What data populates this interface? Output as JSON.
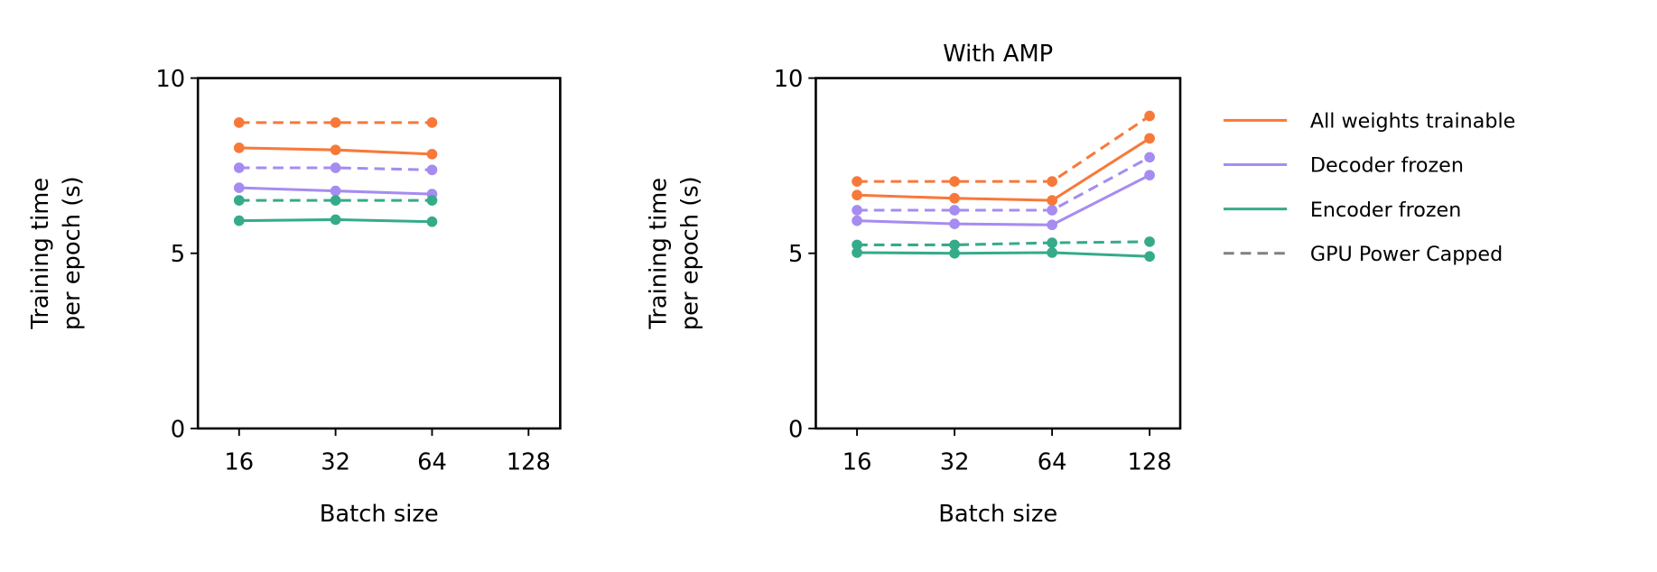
{
  "chart_data": [
    {
      "type": "line",
      "title": "",
      "xlabel": "Batch size",
      "ylabel": [
        "Training time",
        "per epoch (s)"
      ],
      "categories": [
        "16",
        "32",
        "64",
        "128"
      ],
      "yticks": [
        "0",
        "5",
        "10"
      ],
      "ylim": [
        0,
        10
      ],
      "series": [
        {
          "key": "all",
          "style": "dashed",
          "values": [
            8.73,
            8.73,
            8.73,
            null
          ]
        },
        {
          "key": "all",
          "style": "solid",
          "values": [
            8.01,
            7.95,
            7.83,
            null
          ]
        },
        {
          "key": "dec",
          "style": "dashed",
          "values": [
            7.44,
            7.44,
            7.38,
            null
          ]
        },
        {
          "key": "dec",
          "style": "solid",
          "values": [
            6.87,
            6.78,
            6.69,
            null
          ]
        },
        {
          "key": "enc",
          "style": "dashed",
          "values": [
            6.51,
            6.51,
            6.51,
            null
          ]
        },
        {
          "key": "enc",
          "style": "solid",
          "values": [
            5.93,
            5.96,
            5.9,
            null
          ]
        }
      ]
    },
    {
      "type": "line",
      "title": "With AMP",
      "xlabel": "Batch size",
      "ylabel": [
        "Training time",
        "per epoch (s)"
      ],
      "categories": [
        "16",
        "32",
        "64",
        "128"
      ],
      "yticks": [
        "0",
        "5",
        "10"
      ],
      "ylim": [
        0,
        10
      ],
      "series": [
        {
          "key": "all",
          "style": "dashed",
          "values": [
            7.05,
            7.05,
            7.05,
            8.92
          ]
        },
        {
          "key": "all",
          "style": "solid",
          "values": [
            6.66,
            6.57,
            6.51,
            8.28
          ]
        },
        {
          "key": "dec",
          "style": "dashed",
          "values": [
            6.23,
            6.23,
            6.23,
            7.74
          ]
        },
        {
          "key": "dec",
          "style": "solid",
          "values": [
            5.93,
            5.84,
            5.81,
            7.23
          ]
        },
        {
          "key": "enc",
          "style": "dashed",
          "values": [
            5.24,
            5.24,
            5.3,
            5.33
          ]
        },
        {
          "key": "enc",
          "style": "solid",
          "values": [
            5.02,
            5.0,
            5.02,
            4.91
          ]
        }
      ]
    }
  ],
  "legend": {
    "placement": "right",
    "entries": [
      {
        "key": "all",
        "label": "All weights trainable",
        "color": "#f7793a",
        "style": "solid"
      },
      {
        "key": "dec",
        "label": "Decoder frozen",
        "color": "#a68cf0",
        "style": "solid"
      },
      {
        "key": "enc",
        "label": "Encoder frozen",
        "color": "#35ab8a",
        "style": "solid"
      },
      {
        "key": "gpu",
        "label": "GPU Power Capped",
        "color": "#808080",
        "style": "dashed"
      }
    ]
  }
}
